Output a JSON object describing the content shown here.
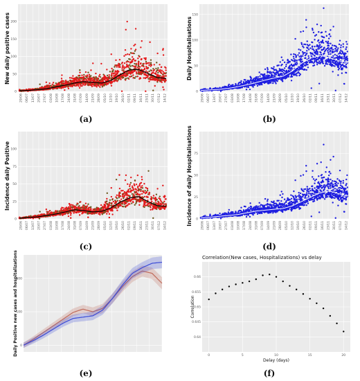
{
  "chart_data": [
    {
      "panel": "(a)",
      "type": "scatter",
      "ylabel": "New daily positive cases",
      "y_ticks": [
        0,
        50,
        100,
        150,
        200
      ],
      "ylim": [
        0,
        250
      ],
      "x_ticks": [
        "29/06",
        "06/07",
        "13/07",
        "20/07",
        "27/07",
        "03/08",
        "10/08",
        "17/08",
        "24/08",
        "31/08",
        "07/09",
        "14/09",
        "21/09",
        "28/09",
        "05/10",
        "12/10",
        "19/10",
        "26/10",
        "02/11",
        "09/11",
        "16/11",
        "23/11",
        "30/11",
        "07/12",
        "14/12"
      ],
      "series": [
        {
          "points": "red",
          "color": "#e41a1c"
        },
        {
          "points": "dark green/brown",
          "color": "#556b2f"
        },
        {
          "trend": [
            2,
            3,
            5,
            8,
            13,
            18,
            24,
            28,
            26,
            24,
            32,
            48,
            62,
            63,
            52,
            40,
            37
          ],
          "color": "#000000"
        }
      ],
      "grid": true
    },
    {
      "panel": "(b)",
      "type": "scatter",
      "ylabel": "Daily Hospitalisations",
      "y_ticks": [
        0,
        50,
        100,
        150
      ],
      "ylim": [
        0,
        170
      ],
      "x_ticks": [
        "29/06",
        "06/07",
        "13/07",
        "20/07",
        "27/07",
        "03/08",
        "10/08",
        "17/08",
        "24/08",
        "31/08",
        "07/09",
        "14/09",
        "21/09",
        "28/09",
        "05/10",
        "12/10",
        "19/10",
        "26/10",
        "02/11",
        "09/11",
        "16/11",
        "23/11",
        "30/11",
        "07/12",
        "14/12"
      ],
      "series": [
        {
          "points": "blue",
          "color": "#1f1fe0"
        },
        {
          "trend": [
            2,
            3,
            4,
            6,
            9,
            13,
            17,
            22,
            26,
            30,
            40,
            55,
            65,
            70,
            66,
            60,
            56
          ],
          "color": "#ffffff"
        }
      ],
      "grid": true
    },
    {
      "panel": "(c)",
      "type": "scatter",
      "ylabel": "Incidence daily Positive",
      "y_ticks": [
        0,
        25,
        50,
        75,
        100
      ],
      "ylim": [
        0,
        125
      ],
      "x_ticks": [
        "29/06",
        "06/07",
        "13/07",
        "20/07",
        "27/07",
        "03/08",
        "10/08",
        "17/08",
        "24/08",
        "31/08",
        "07/09",
        "14/09",
        "21/09",
        "28/09",
        "05/10",
        "12/10",
        "19/10",
        "26/10",
        "02/11",
        "09/11",
        "16/11",
        "23/11",
        "30/11",
        "07/12",
        "14/12"
      ],
      "series": [
        {
          "points": "red",
          "color": "#e41a1c"
        },
        {
          "points": "dark green/brown",
          "color": "#556b2f"
        },
        {
          "trend": [
            1,
            2,
            3,
            5,
            7,
            10,
            13,
            12,
            10,
            11,
            16,
            24,
            30,
            32,
            25,
            19,
            18
          ],
          "color": "#000000"
        }
      ],
      "grid": true
    },
    {
      "panel": "(d)",
      "type": "scatter",
      "ylabel": "Incidence of daily Hospitalisations",
      "y_ticks": [
        0,
        25,
        50,
        75
      ],
      "ylim": [
        0,
        100
      ],
      "x_ticks": [
        "29/06",
        "06/07",
        "13/07",
        "20/07",
        "27/07",
        "03/08",
        "10/08",
        "17/08",
        "24/08",
        "31/08",
        "07/09",
        "14/09",
        "21/09",
        "28/09",
        "05/10",
        "12/10",
        "19/10",
        "26/10",
        "02/11",
        "09/11",
        "16/11",
        "23/11",
        "30/11",
        "07/12",
        "14/12"
      ],
      "series": [
        {
          "points": "blue",
          "color": "#1f1fe0"
        },
        {
          "trend": [
            1,
            2,
            3,
            4,
            5,
            7,
            9,
            10,
            11,
            12,
            15,
            20,
            25,
            30,
            32,
            29,
            26
          ],
          "color": "#ffffff"
        }
      ],
      "grid": true
    },
    {
      "panel": "(e)",
      "type": "line",
      "ylabel": "Daily Positive new cases and hospitalizations",
      "y_ticks": [
        "0",
        "100",
        "200"
      ],
      "series": [
        {
          "color": "#c06a5a",
          "values": [
            0,
            18,
            38,
            58,
            78,
            98,
            108,
            100,
            110,
            140,
            175,
            205,
            222,
            215,
            185
          ]
        },
        {
          "color": "#3b4bd6",
          "values": [
            0,
            14,
            30,
            48,
            66,
            80,
            84,
            88,
            105,
            140,
            180,
            215,
            232,
            245,
            248
          ]
        }
      ],
      "grid": true
    },
    {
      "panel": "(f)",
      "type": "scatter",
      "title": "Correlation(New cases, Hospitalizations)  vs delay",
      "xlabel": "Delay (days)",
      "ylabel": "Correlation",
      "xlim": [
        0,
        20
      ],
      "ylim": [
        0.635,
        0.665
      ],
      "x_ticks": [
        0,
        5,
        10,
        15,
        20
      ],
      "y_ticks": [
        0.64,
        0.645,
        0.65,
        0.655,
        0.66
      ],
      "x": [
        0,
        1,
        2,
        3,
        4,
        5,
        6,
        7,
        8,
        9,
        10,
        11,
        12,
        13,
        14,
        15,
        16,
        17,
        18,
        19,
        20
      ],
      "values": [
        0.6525,
        0.6545,
        0.6558,
        0.6568,
        0.6575,
        0.658,
        0.6585,
        0.6592,
        0.6605,
        0.6608,
        0.66,
        0.6585,
        0.657,
        0.6558,
        0.6543,
        0.6527,
        0.6512,
        0.6495,
        0.647,
        0.6445,
        0.6418
      ],
      "grid": true
    }
  ],
  "captions": [
    "(a)",
    "(b)",
    "(c)",
    "(d)",
    "(e)",
    "(f)"
  ]
}
